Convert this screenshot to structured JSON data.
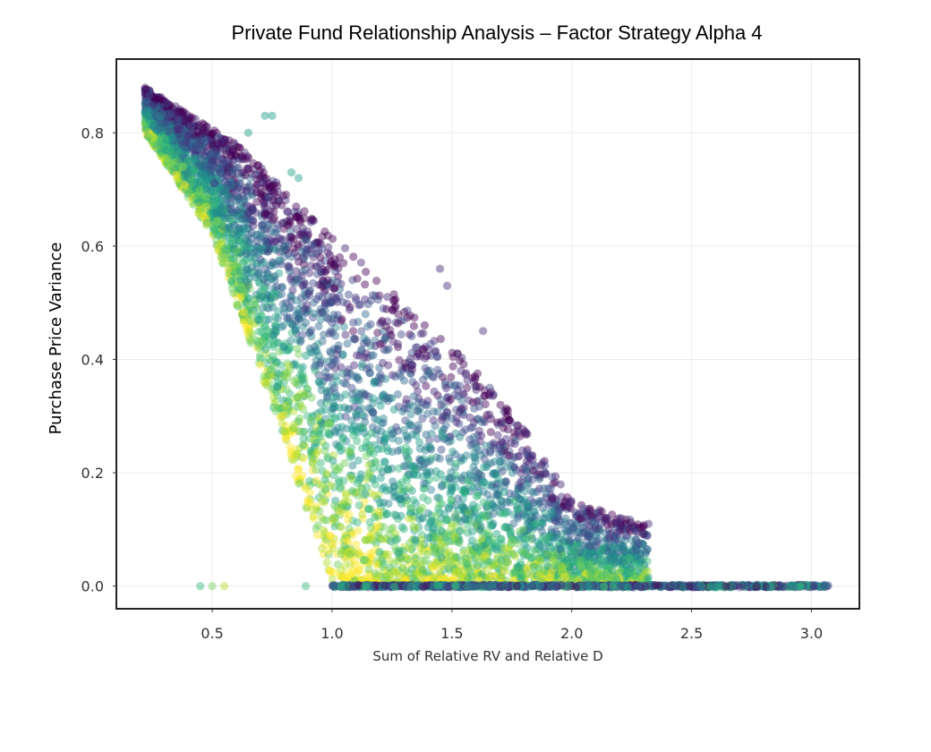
{
  "chart_data": {
    "type": "scatter",
    "title": "Private Fund Relationship Analysis – Factor Strategy Alpha 4",
    "xlabel": "Sum of Relative RV and Relative D",
    "ylabel": "Purchase Price Variance",
    "xlim": [
      0.1,
      3.2
    ],
    "ylim": [
      -0.04,
      0.93
    ],
    "xticks": [
      0.5,
      1.0,
      1.5,
      2.0,
      2.5,
      3.0
    ],
    "xtick_labels": [
      "0.5",
      "1.0",
      "1.5",
      "2.0",
      "2.5",
      "3.0"
    ],
    "yticks": [
      0.0,
      0.2,
      0.4,
      0.6,
      0.8
    ],
    "ytick_labels": [
      "0.0",
      "0.2",
      "0.4",
      "0.6",
      "0.8"
    ],
    "grid": true,
    "colormap": "viridis",
    "marker_alpha": 0.45,
    "legend": "none",
    "point_count_approx": 20000,
    "distribution_summary": {
      "upper_envelope": [
        [
          0.22,
          0.88
        ],
        [
          0.6,
          0.78
        ],
        [
          1.0,
          0.62
        ],
        [
          1.3,
          0.5
        ],
        [
          1.6,
          0.38
        ],
        [
          1.8,
          0.28
        ],
        [
          2.0,
          0.15
        ],
        [
          2.3,
          0.11
        ]
      ],
      "lower_envelope": [
        [
          0.22,
          0.8
        ],
        [
          0.5,
          0.62
        ],
        [
          0.75,
          0.32
        ],
        [
          1.0,
          0.0
        ]
      ],
      "zero_cluster_x_range": [
        1.0,
        3.07
      ],
      "isolated_points": [
        [
          0.45,
          0.0
        ],
        [
          0.5,
          0.0
        ],
        [
          0.55,
          0.0
        ],
        [
          0.89,
          0.0
        ],
        [
          0.72,
          0.83
        ],
        [
          0.75,
          0.83
        ],
        [
          0.65,
          0.8
        ],
        [
          0.83,
          0.73
        ],
        [
          0.86,
          0.72
        ],
        [
          1.45,
          0.56
        ],
        [
          1.48,
          0.53
        ],
        [
          1.63,
          0.45
        ],
        [
          2.32,
          0.11
        ],
        [
          2.2,
          0.12
        ],
        [
          2.1,
          0.1
        ]
      ],
      "color_trend": "yellow/green points concentrated near the lower-left diagonal edge around x≈0.9–1.1, purple points near the upper-right envelope"
    }
  },
  "colors": {
    "frame": "#222222",
    "grid": "#ececec",
    "viridis": [
      "#440154",
      "#482878",
      "#3e4989",
      "#31688e",
      "#26828e",
      "#1f9e89",
      "#35b779",
      "#6ece58",
      "#b5de2b",
      "#fde725"
    ]
  }
}
